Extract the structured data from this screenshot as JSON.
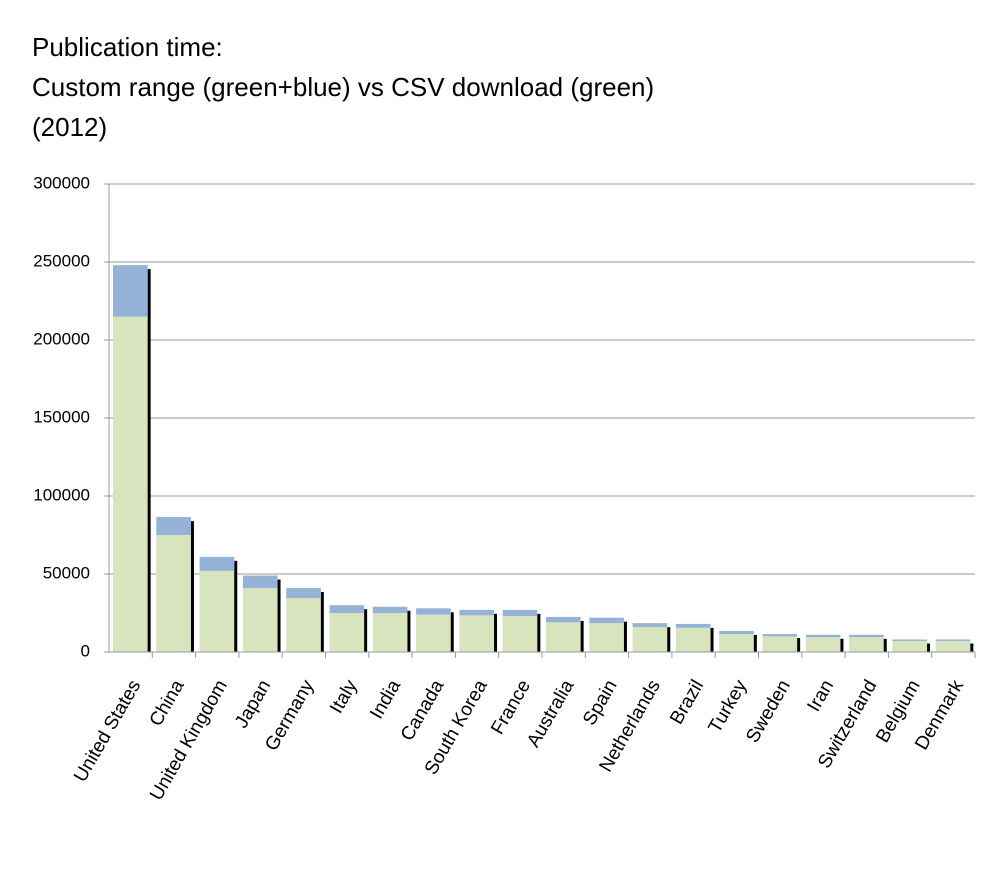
{
  "chart_data": {
    "type": "stacked_bar",
    "title": [
      "Publication time:",
      "Custom range (green+blue) vs CSV download (green)",
      "(2012)"
    ],
    "categories": [
      "United States",
      "China",
      "United Kingdom",
      "Japan",
      "Germany",
      "Italy",
      "India",
      "Canada",
      "South Korea",
      "France",
      "Australia",
      "Spain",
      "Netherlands",
      "Brazil",
      "Turkey",
      "Sweden",
      "Iran",
      "Switzerland",
      "Belgium",
      "Denmark"
    ],
    "series": [
      {
        "color": "#d7e4bd",
        "values": [
          215000,
          75000,
          52000,
          41000,
          34500,
          25000,
          25000,
          24000,
          23500,
          23000,
          19000,
          18500,
          16000,
          15500,
          11500,
          10000,
          9500,
          9500,
          7000,
          7000
        ]
      },
      {
        "color": "#95b3d7",
        "values": [
          33000,
          11500,
          9000,
          8000,
          6500,
          5000,
          4000,
          4000,
          3500,
          4000,
          3500,
          3500,
          2500,
          2500,
          2000,
          1500,
          1500,
          1500,
          1000,
          1000
        ]
      }
    ],
    "ylim": [
      0,
      300000
    ],
    "yticks": [
      0,
      50000,
      100000,
      150000,
      200000,
      250000,
      300000
    ],
    "grid": true
  }
}
